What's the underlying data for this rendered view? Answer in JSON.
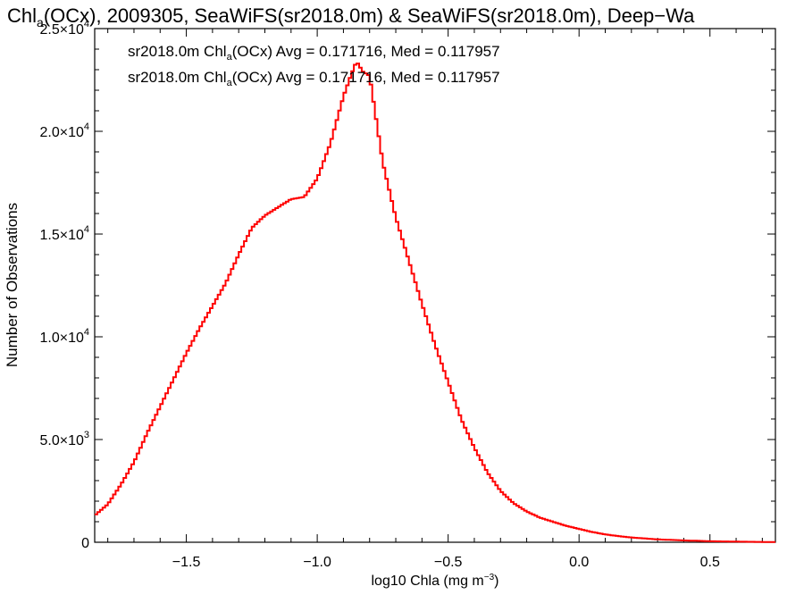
{
  "chart_data": {
    "type": "line",
    "title_parts": [
      "Chl",
      "a",
      "(OCx), 2009305, SeaWiFS(sr2018.0m) & SeaWiFS(sr2018.0m), Deep−Wa"
    ],
    "xlabel_parts": [
      "log10 Chla (mg m",
      "−3",
      ")"
    ],
    "ylabel": "Number of Observations",
    "xlim": [
      -1.85,
      0.75
    ],
    "ylim": [
      0,
      25000
    ],
    "x_ticks": [
      {
        "value": -1.5,
        "label": "−1.5"
      },
      {
        "value": -1.0,
        "label": "−1.0"
      },
      {
        "value": -0.5,
        "label": "−0.5"
      },
      {
        "value": 0.0,
        "label": "0.0"
      },
      {
        "value": 0.5,
        "label": "0.5"
      }
    ],
    "y_ticks": [
      {
        "value": 0,
        "mant": "0",
        "exp": ""
      },
      {
        "value": 5000,
        "mant": "5.0×10",
        "exp": "3"
      },
      {
        "value": 10000,
        "mant": "1.0×10",
        "exp": "4"
      },
      {
        "value": 15000,
        "mant": "1.5×10",
        "exp": "4"
      },
      {
        "value": 20000,
        "mant": "2.0×10",
        "exp": "4"
      },
      {
        "value": 25000,
        "mant": "2.5×10",
        "exp": "4"
      }
    ],
    "legend": [
      {
        "prefix": "sr2018.0m Chl",
        "sub": "a",
        "suffix": "(OCx) Avg = 0.171716, Med = 0.117957",
        "color": "#000000"
      },
      {
        "prefix": "sr2018.0m Chl",
        "sub": "a",
        "suffix": "(OCx) Avg = 0.171716, Med = 0.117957",
        "color": "#ff0000"
      }
    ],
    "series": [
      {
        "color": "#ff0000",
        "x": [
          -1.85,
          -1.8,
          -1.75,
          -1.7,
          -1.65,
          -1.6,
          -1.55,
          -1.5,
          -1.45,
          -1.4,
          -1.35,
          -1.3,
          -1.25,
          -1.2,
          -1.15,
          -1.1,
          -1.05,
          -1.0,
          -0.95,
          -0.9,
          -0.875,
          -0.85,
          -0.825,
          -0.8,
          -0.775,
          -0.75,
          -0.7,
          -0.65,
          -0.6,
          -0.55,
          -0.5,
          -0.45,
          -0.4,
          -0.35,
          -0.3,
          -0.25,
          -0.2,
          -0.15,
          -0.1,
          -0.05,
          0.0,
          0.05,
          0.1,
          0.15,
          0.2,
          0.3,
          0.4,
          0.5,
          0.6,
          0.7,
          0.75
        ],
        "y": [
          1300,
          1850,
          2800,
          3900,
          5300,
          6600,
          7900,
          9200,
          10400,
          11500,
          12600,
          14000,
          15300,
          15900,
          16300,
          16700,
          16800,
          17700,
          19400,
          21700,
          22600,
          23400,
          22900,
          22700,
          20600,
          18500,
          15800,
          13700,
          11600,
          9600,
          7800,
          6000,
          4600,
          3400,
          2500,
          1900,
          1500,
          1200,
          1000,
          800,
          650,
          500,
          380,
          300,
          230,
          140,
          90,
          50,
          30,
          15,
          10
        ]
      }
    ]
  }
}
